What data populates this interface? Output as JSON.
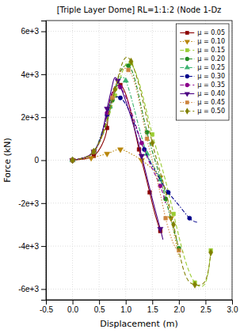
{
  "chart_data": {
    "type": "line",
    "title": "[Triple Layer Dome] RL=1:1:2 (Node 1-Dz",
    "xlabel": "Displacement (m)",
    "ylabel": "Force (kN)",
    "xlim": [
      -0.5,
      3.0
    ],
    "ylim": [
      -6500,
      6500
    ],
    "xticks": [
      -0.5,
      {
        "value": 0.0,
        "label": "0.0"
      },
      0.5,
      {
        "value": 1.0,
        "label": "1.0"
      },
      1.5,
      {
        "value": 2.0,
        "label": "2.0"
      },
      2.5,
      {
        "value": 3.0,
        "label": "3.0"
      }
    ],
    "yticks": [
      {
        "value": -6000,
        "label": "-6e+3"
      },
      {
        "value": -4000,
        "label": "-4e+3"
      },
      {
        "value": -2000,
        "label": "-2e+3"
      },
      0,
      {
        "value": 2000,
        "label": "2e+3"
      },
      {
        "value": 4000,
        "label": "4e+3"
      },
      {
        "value": 6000,
        "label": "6e+3"
      }
    ],
    "grid": true,
    "legend": "upper right",
    "series": [
      {
        "name": "μ = 0.05",
        "color": "#8B0000",
        "line_style": "solid",
        "marker": "square",
        "x": [
          0.0,
          0.2,
          0.4,
          0.55,
          0.65,
          0.7,
          0.9,
          1.1,
          1.25,
          1.35,
          1.45,
          1.55,
          1.65
        ],
        "values": [
          0,
          50,
          200,
          700,
          1500,
          2700,
          3500,
          2200,
          500,
          -500,
          -1500,
          -2500,
          -3300
        ]
      },
      {
        "name": "μ = 0.10",
        "color": "#B8860B",
        "line_style": "dotted",
        "marker": "triangle-down",
        "x": [
          0.0,
          0.2,
          0.35,
          0.5,
          0.65,
          0.75,
          0.9,
          1.1,
          1.3,
          1.5,
          1.65,
          1.75,
          1.85,
          2.0
        ],
        "values": [
          0,
          50,
          100,
          200,
          300,
          400,
          500,
          300,
          0,
          -400,
          -800,
          -1500,
          -2700,
          -4500
        ]
      },
      {
        "name": "μ = 0.15",
        "color": "#9ACD32",
        "line_style": "dashed",
        "marker": "square",
        "x": [
          0.0,
          0.2,
          0.4,
          0.6,
          0.8,
          0.95,
          1.1,
          1.3,
          1.5,
          1.7,
          1.9,
          2.1,
          2.3,
          2.5,
          2.6
        ],
        "values": [
          0,
          100,
          400,
          1400,
          3000,
          4200,
          4500,
          3200,
          1200,
          -500,
          -2500,
          -4500,
          -5700,
          -5700,
          -4200
        ]
      },
      {
        "name": "μ = 0.20",
        "color": "#228B22",
        "line_style": "dashdot",
        "marker": "circle",
        "x": [
          0.0,
          0.2,
          0.4,
          0.6,
          0.75,
          0.9,
          1.05,
          1.2,
          1.4,
          1.6,
          1.75,
          1.9,
          2.0
        ],
        "values": [
          0,
          100,
          400,
          1400,
          2800,
          4100,
          4400,
          3500,
          1300,
          -400,
          -1800,
          -3200,
          -4100
        ]
      },
      {
        "name": "μ = 0.25",
        "color": "#3CB371",
        "line_style": "dashdot",
        "marker": "triangle-up",
        "x": [
          0.0,
          0.2,
          0.4,
          0.55,
          0.7,
          0.85,
          1.0,
          1.2,
          1.4,
          1.55,
          1.65,
          1.75
        ],
        "values": [
          0,
          100,
          400,
          1300,
          2500,
          3600,
          3700,
          2000,
          300,
          -400,
          -900,
          -1500
        ]
      },
      {
        "name": "μ = 0.30",
        "color": "#00008B",
        "line_style": "dashdot",
        "marker": "circle",
        "x": [
          0.0,
          0.2,
          0.4,
          0.55,
          0.65,
          0.75,
          0.9,
          1.1,
          1.35,
          1.6,
          1.8,
          2.0,
          2.2,
          2.35
        ],
        "values": [
          0,
          100,
          400,
          1200,
          2100,
          2800,
          2900,
          2100,
          500,
          -700,
          -1500,
          -2100,
          -2700,
          -2900
        ]
      },
      {
        "name": "μ = 0.35",
        "color": "#8B008B",
        "line_style": "dashed",
        "marker": "circle",
        "x": [
          0.0,
          0.2,
          0.4,
          0.55,
          0.65,
          0.75,
          0.9,
          1.1,
          1.3,
          1.5,
          1.65,
          1.75
        ],
        "values": [
          0,
          100,
          400,
          1200,
          2200,
          3200,
          3400,
          2300,
          800,
          -400,
          -1200,
          -2000
        ]
      },
      {
        "name": "μ = 0.40",
        "color": "#4B0082",
        "line_style": "solid",
        "marker": "triangle-down",
        "x": [
          0.0,
          0.2,
          0.4,
          0.55,
          0.65,
          0.75,
          0.85,
          1.1,
          1.3,
          1.5,
          1.65,
          1.7
        ],
        "values": [
          0,
          100,
          400,
          1200,
          2400,
          3500,
          3700,
          2000,
          200,
          -1800,
          -3200,
          -3700
        ]
      },
      {
        "name": "μ = 0.45",
        "color": "#CD853F",
        "line_style": "dotted",
        "marker": "square",
        "x": [
          0.0,
          0.2,
          0.4,
          0.6,
          0.75,
          0.9,
          1.05,
          1.2,
          1.4,
          1.6,
          1.75,
          1.9,
          2.0,
          2.1
        ],
        "values": [
          0,
          100,
          400,
          1400,
          2900,
          4100,
          4200,
          3300,
          1000,
          -1000,
          -2700,
          -3900,
          -4200,
          -4300
        ]
      },
      {
        "name": "μ = 0.50",
        "color": "#808000",
        "line_style": "dashed",
        "marker": "diamond",
        "x": [
          0.0,
          0.2,
          0.4,
          0.6,
          0.8,
          0.95,
          1.1,
          1.3,
          1.5,
          1.7,
          1.9,
          2.1,
          2.3,
          2.5,
          2.6
        ],
        "values": [
          0,
          100,
          400,
          1500,
          3300,
          4600,
          4600,
          3000,
          800,
          -1000,
          -3000,
          -5200,
          -5800,
          -5600,
          -4300
        ]
      }
    ]
  }
}
